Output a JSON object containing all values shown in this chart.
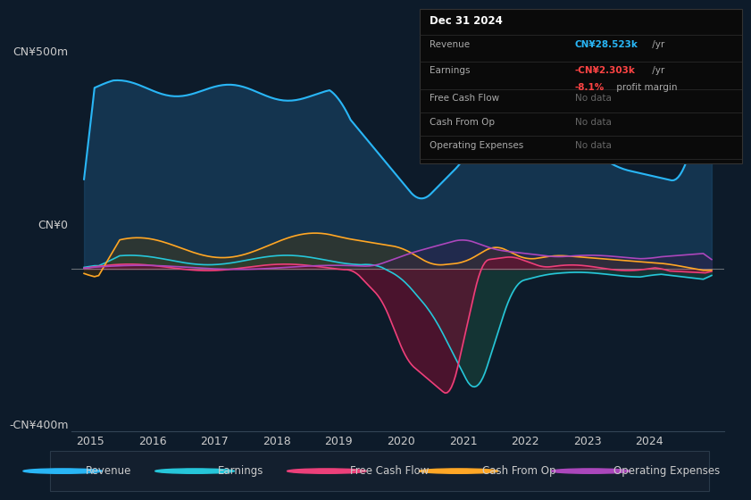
{
  "background_color": "#0d1b2a",
  "plot_bg_color": "#0d1b2a",
  "ylabel_top": "CN¥500m",
  "ylabel_zero": "CN¥0",
  "ylabel_bot": "-CN¥400m",
  "ylim": [
    -400,
    550
  ],
  "xlim": [
    2014.7,
    2025.2
  ],
  "xticks": [
    2015,
    2016,
    2017,
    2018,
    2019,
    2020,
    2021,
    2022,
    2023,
    2024
  ],
  "grid_color": "#1e3a5f",
  "zero_line_color": "#aaaaaa",
  "series": {
    "revenue": {
      "color": "#29b6f6",
      "fill_color": "#1a4a6e",
      "label": "Revenue"
    },
    "earnings": {
      "color": "#26c6da",
      "fill_color": "#1a4a3e",
      "label": "Earnings"
    },
    "free_cash_flow": {
      "color": "#ec407a",
      "fill_color": "#6b1030",
      "label": "Free Cash Flow"
    },
    "cash_from_op": {
      "color": "#ffa726",
      "fill_color": "#5a3a00",
      "label": "Cash From Op"
    },
    "operating_expenses": {
      "color": "#ab47bc",
      "fill_color": "#3a1a4a",
      "label": "Operating Expenses"
    }
  },
  "legend_items": [
    {
      "label": "Revenue",
      "color": "#29b6f6"
    },
    {
      "label": "Earnings",
      "color": "#26c6da"
    },
    {
      "label": "Free Cash Flow",
      "color": "#ec407a"
    },
    {
      "label": "Cash From Op",
      "color": "#ffa726"
    },
    {
      "label": "Operating Expenses",
      "color": "#ab47bc"
    }
  ],
  "info_box": {
    "date": "Dec 31 2024",
    "revenue_val": "CN¥28.523k",
    "revenue_color": "#29b6f6",
    "earnings_val": "-CN¥2.303k",
    "earnings_color": "#ff4444",
    "margin_val": "-8.1%",
    "margin_color": "#ff4444",
    "no_data_color": "#666666"
  }
}
